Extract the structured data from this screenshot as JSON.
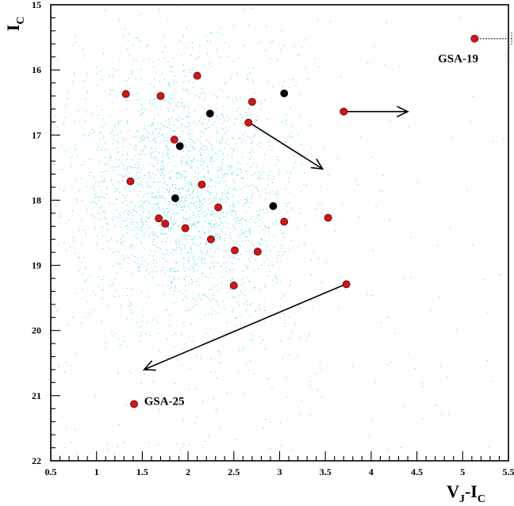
{
  "chart_data": {
    "type": "scatter",
    "title": "",
    "xlabel": {
      "main": "V",
      "sub1": "J",
      "mid": "-I",
      "sub2": "C"
    },
    "ylabel": {
      "main": "I",
      "sub": "C"
    },
    "xlim": [
      0.5,
      5.5
    ],
    "ylim": [
      15,
      22
    ],
    "y_inverted": true,
    "grid": false,
    "x_ticks": [
      "0.5",
      "1",
      "1.5",
      "2",
      "2.5",
      "3",
      "3.5",
      "4",
      "4.5",
      "5",
      "5.5"
    ],
    "y_ticks": [
      "15",
      "16",
      "17",
      "18",
      "19",
      "20",
      "21",
      "22"
    ],
    "colors": {
      "background_field": "#22d3d8",
      "red_points": "#e01010",
      "black_points": "#000000",
      "arrows": "#000000"
    },
    "background_field": {
      "description_note": "",
      "approx_n": 9000,
      "center_x": 1.9,
      "center_y": 17.9
    },
    "series": [
      {
        "color_key": "red_points",
        "points": [
          {
            "x": 1.32,
            "y": 16.37
          },
          {
            "x": 1.7,
            "y": 16.4
          },
          {
            "x": 2.1,
            "y": 16.09
          },
          {
            "x": 2.7,
            "y": 16.49
          },
          {
            "x": 2.66,
            "y": 16.81
          },
          {
            "x": 3.7,
            "y": 16.64
          },
          {
            "x": 1.85,
            "y": 17.07
          },
          {
            "x": 1.37,
            "y": 17.71
          },
          {
            "x": 2.15,
            "y": 17.76
          },
          {
            "x": 2.33,
            "y": 18.11
          },
          {
            "x": 1.68,
            "y": 18.28
          },
          {
            "x": 1.75,
            "y": 18.36
          },
          {
            "x": 1.97,
            "y": 18.43
          },
          {
            "x": 2.25,
            "y": 18.6
          },
          {
            "x": 3.05,
            "y": 18.33
          },
          {
            "x": 3.53,
            "y": 18.27
          },
          {
            "x": 2.51,
            "y": 18.77
          },
          {
            "x": 2.76,
            "y": 18.79
          },
          {
            "x": 2.5,
            "y": 19.31
          },
          {
            "x": 3.73,
            "y": 19.29
          },
          {
            "x": 1.41,
            "y": 21.13
          },
          {
            "x": 5.13,
            "y": 15.52
          }
        ]
      },
      {
        "color_key": "black_points",
        "points": [
          {
            "x": 3.05,
            "y": 16.36
          },
          {
            "x": 2.24,
            "y": 16.67
          },
          {
            "x": 1.91,
            "y": 17.17
          },
          {
            "x": 1.86,
            "y": 17.97
          },
          {
            "x": 2.93,
            "y": 18.09
          }
        ]
      }
    ],
    "arrows": [
      {
        "from": [
          3.72,
          16.64
        ],
        "to": [
          4.4,
          16.64
        ]
      },
      {
        "from": [
          2.67,
          16.81
        ],
        "to": [
          3.47,
          17.52
        ]
      },
      {
        "from": [
          3.72,
          19.29
        ],
        "to": [
          1.52,
          20.6
        ]
      }
    ],
    "dotted_line": {
      "from": [
        5.13,
        15.52
      ],
      "to": [
        5.58,
        15.52
      ]
    },
    "annotations": [
      {
        "text": "GSA-19",
        "x": 4.73,
        "y": 15.82
      },
      {
        "text": "GSA-25",
        "x": 1.52,
        "y": 21.08
      }
    ]
  }
}
